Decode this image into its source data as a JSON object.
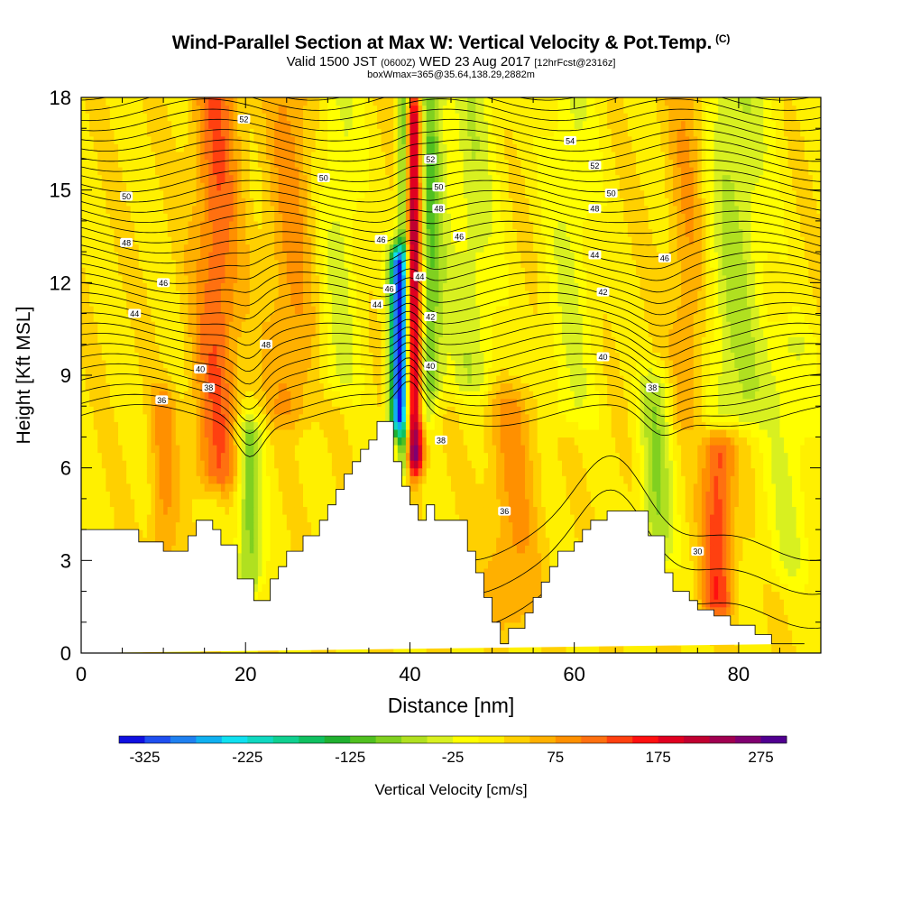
{
  "chart_data": {
    "type": "heatmap",
    "title": "Wind-Parallel Section at Max W: Vertical Velocity & Pot.Temp.",
    "title_mark": "(C)",
    "subtitle_parts": [
      "Valid 1500 JST",
      "(0600Z)",
      "WED 23 Aug 2017",
      "[12hrFcst@2316z]"
    ],
    "subtitle2": "boxWmax=365@35.64,138.29,2882m",
    "xlabel": "Distance [nm]",
    "ylabel": "Height [Kft MSL]",
    "xlim": [
      0,
      90
    ],
    "ylim": [
      0,
      18
    ],
    "x_ticks": [
      "0",
      "20",
      "40",
      "60",
      "80"
    ],
    "y_ticks": [
      "0",
      "3",
      "6",
      "9",
      "12",
      "15",
      "18"
    ],
    "colorbar": {
      "label": "Vertical Velocity [cm/s]",
      "tick_labels": [
        "-325",
        "-225",
        "-125",
        "-25",
        "75",
        "175",
        "275"
      ],
      "colors": [
        "#1010e0",
        "#1f4ff0",
        "#1f80f0",
        "#10b0f0",
        "#10e0f0",
        "#10d8c0",
        "#10d090",
        "#10c060",
        "#20b030",
        "#50c020",
        "#80d020",
        "#b0e020",
        "#d8f020",
        "#ffff00",
        "#fff000",
        "#ffd000",
        "#ffb000",
        "#ff9000",
        "#ff7010",
        "#ff4010",
        "#ff1010",
        "#e00020",
        "#c00030",
        "#a00050",
        "#800070",
        "#500090"
      ]
    },
    "terrain_profile": {
      "x": [
        0,
        7,
        7,
        10,
        10,
        13,
        13,
        14,
        14,
        16,
        16,
        17,
        17,
        19,
        19,
        21,
        21,
        23,
        23,
        24,
        24,
        25,
        25,
        27,
        27,
        29,
        29,
        30,
        30,
        31,
        31,
        32,
        32,
        33,
        33,
        34,
        34,
        35,
        35,
        36,
        36,
        37,
        37,
        38,
        38,
        39,
        39,
        40,
        40,
        41,
        41,
        42,
        42,
        43,
        43,
        44,
        44,
        47,
        47,
        48,
        48,
        49,
        49,
        50,
        50,
        51,
        51,
        52,
        52,
        54,
        54,
        55,
        55,
        56,
        56,
        57,
        57,
        58,
        58,
        60,
        60,
        61,
        61,
        62,
        62,
        64,
        64,
        67,
        67,
        69,
        69,
        71,
        71,
        72,
        72,
        74,
        74,
        75,
        75,
        77,
        77,
        79,
        79,
        82,
        82,
        84,
        84,
        86,
        86,
        88,
        88,
        90
      ],
      "y": [
        4,
        4,
        3.6,
        3.6,
        3.3,
        3.3,
        3.8,
        3.8,
        4.3,
        4.3,
        4,
        4,
        3.5,
        3.5,
        2.4,
        2.4,
        1.7,
        1.7,
        2.4,
        2.4,
        2.8,
        2.8,
        3.3,
        3.3,
        3.8,
        3.8,
        4.3,
        4.3,
        4.8,
        4.8,
        5.3,
        5.3,
        5.8,
        5.8,
        6.2,
        6.2,
        6.6,
        6.6,
        6.9,
        6.9,
        7.5,
        7.5,
        7.5,
        7.5,
        6.2,
        6.2,
        5.4,
        5.4,
        4.8,
        4.8,
        4.3,
        4.3,
        4.8,
        4.8,
        4.3,
        4.3,
        4.3,
        4.3,
        3.3,
        3.3,
        2.6,
        2.6,
        1.8,
        1.8,
        1,
        1,
        0.3,
        0.3,
        0.8,
        0.8,
        1.3,
        1.3,
        1.8,
        1.8,
        2.3,
        2.3,
        2.8,
        2.8,
        3.3,
        3.3,
        3.6,
        3.6,
        4,
        4,
        4.3,
        4.3,
        4.6,
        4.6,
        4.6,
        4.6,
        3.8,
        3.8,
        2.6,
        2.6,
        2,
        2,
        1.7,
        1.7,
        1.4,
        1.4,
        1.2,
        1.2,
        0.9,
        0.9,
        0.6,
        0.6,
        0.3,
        0.3,
        0.3,
        0.3
      ]
    },
    "vertical_velocity_features": [
      {
        "x": 38.5,
        "ybot": 7.8,
        "ytop": 12.5,
        "w": 1.0,
        "v": -300
      },
      {
        "x": 39.2,
        "ybot": 6.3,
        "ytop": 18,
        "w": 0.7,
        "v": -150
      },
      {
        "x": 40.6,
        "ybot": 6.5,
        "ytop": 17.5,
        "w": 1.1,
        "v": 250
      },
      {
        "x": 41.6,
        "ybot": 8.0,
        "ytop": 18,
        "w": 1.3,
        "v": -100
      },
      {
        "x": 43.0,
        "ybot": 9.0,
        "ytop": 18,
        "w": 1.5,
        "v": -75
      },
      {
        "x": 16.5,
        "ybot": 6.0,
        "ytop": 18,
        "w": 2.8,
        "v": 100
      },
      {
        "x": 20.5,
        "ybot": 2.5,
        "ytop": 7.0,
        "w": 1.5,
        "v": -110
      },
      {
        "x": 10.0,
        "ybot": 3.6,
        "ytop": 8.0,
        "w": 1.6,
        "v": 60
      },
      {
        "x": 25.5,
        "ybot": 8.0,
        "ytop": 18,
        "w": 3.0,
        "v": 60
      },
      {
        "x": 31.5,
        "ybot": 9.0,
        "ytop": 18,
        "w": 2.5,
        "v": -50
      },
      {
        "x": 47.5,
        "ybot": 9.0,
        "ytop": 18,
        "w": 3.0,
        "v": -60
      },
      {
        "x": 52.5,
        "ybot": 1.5,
        "ytop": 8.0,
        "w": 3.0,
        "v": 60
      },
      {
        "x": 59.5,
        "ybot": 8.0,
        "ytop": 18,
        "w": 3.0,
        "v": -45
      },
      {
        "x": 70.0,
        "ybot": 3.5,
        "ytop": 8.5,
        "w": 2.0,
        "v": -90
      },
      {
        "x": 77.5,
        "ybot": 1.8,
        "ytop": 6.5,
        "w": 2.0,
        "v": 120
      },
      {
        "x": 79.5,
        "ybot": 8.0,
        "ytop": 18,
        "w": 4.0,
        "v": -75
      },
      {
        "x": 74.0,
        "ybot": 8.0,
        "ytop": 18,
        "w": 2.5,
        "v": 60
      },
      {
        "x": 86.0,
        "ybot": 3.0,
        "ytop": 10.0,
        "w": 3.0,
        "v": -45
      }
    ],
    "pot_temp_contour_labels": [
      {
        "text": "36",
        "x": 9.8,
        "y": 8.2
      },
      {
        "text": "38",
        "x": 15.5,
        "y": 8.6
      },
      {
        "text": "40",
        "x": 14.5,
        "y": 9.2
      },
      {
        "text": "44",
        "x": 6.5,
        "y": 11.0
      },
      {
        "text": "46",
        "x": 10.0,
        "y": 12.0
      },
      {
        "text": "48",
        "x": 5.5,
        "y": 13.3
      },
      {
        "text": "50",
        "x": 5.5,
        "y": 14.8
      },
      {
        "text": "52",
        "x": 19.8,
        "y": 17.3
      },
      {
        "text": "50",
        "x": 29.5,
        "y": 15.4
      },
      {
        "text": "48",
        "x": 22.5,
        "y": 10.0
      },
      {
        "text": "46",
        "x": 36.5,
        "y": 13.4
      },
      {
        "text": "44",
        "x": 36.0,
        "y": 11.3
      },
      {
        "text": "46",
        "x": 37.5,
        "y": 11.8
      },
      {
        "text": "44",
        "x": 41.2,
        "y": 12.2
      },
      {
        "text": "42",
        "x": 42.5,
        "y": 10.9
      },
      {
        "text": "40",
        "x": 42.5,
        "y": 9.3
      },
      {
        "text": "38",
        "x": 43.8,
        "y": 6.9
      },
      {
        "text": "52",
        "x": 42.5,
        "y": 16.0
      },
      {
        "text": "50",
        "x": 43.5,
        "y": 15.1
      },
      {
        "text": "48",
        "x": 43.5,
        "y": 14.4
      },
      {
        "text": "46",
        "x": 46.0,
        "y": 13.5
      },
      {
        "text": "54",
        "x": 59.5,
        "y": 16.6
      },
      {
        "text": "52",
        "x": 62.5,
        "y": 15.8
      },
      {
        "text": "50",
        "x": 64.5,
        "y": 14.9
      },
      {
        "text": "48",
        "x": 62.5,
        "y": 14.4
      },
      {
        "text": "44",
        "x": 62.5,
        "y": 12.9
      },
      {
        "text": "42",
        "x": 63.5,
        "y": 11.7
      },
      {
        "text": "46",
        "x": 71.0,
        "y": 12.8
      },
      {
        "text": "40",
        "x": 63.5,
        "y": 9.6
      },
      {
        "text": "38",
        "x": 69.5,
        "y": 8.6
      },
      {
        "text": "36",
        "x": 51.5,
        "y": 4.6
      },
      {
        "text": "30",
        "x": 75.0,
        "y": 3.3
      }
    ]
  }
}
